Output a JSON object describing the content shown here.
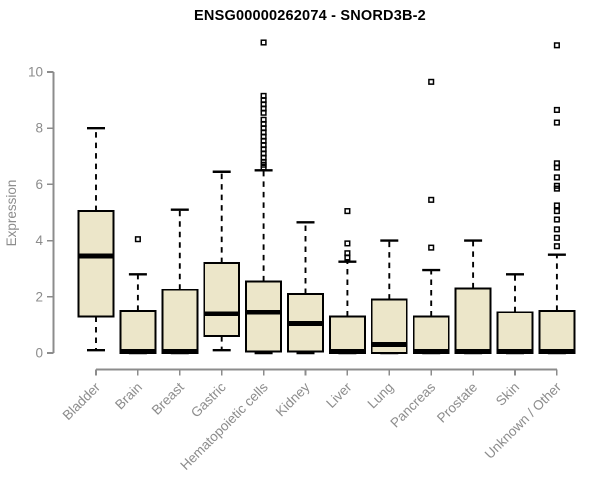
{
  "chart_data": {
    "type": "boxplot",
    "title": "ENSG00000262074 - SNORD3B-2",
    "ylabel": "Expression",
    "xlabel": "",
    "ylim": [
      0,
      11.3
    ],
    "yticks": [
      0,
      2,
      4,
      6,
      8,
      10
    ],
    "grid": false,
    "legend": "none",
    "colors": {
      "box_fill": "#ECE6C9",
      "box_stroke": "#000000",
      "median": "#000000",
      "whisker": "#000000",
      "outlier": "#000000",
      "axis_line": "#8C8C8C",
      "axis_text": "#8C8C8C",
      "title_text": "#000000"
    },
    "categories": [
      "Bladder",
      "Brain",
      "Breast",
      "Gastric",
      "Hematopoietic cells",
      "Kidney",
      "Liver",
      "Lung",
      "Pancreas",
      "Prostate",
      "Skin",
      "Unknown / Other"
    ],
    "series": [
      {
        "name": "Bladder",
        "low": 0.1,
        "q1": 1.3,
        "median": 3.45,
        "q3": 5.05,
        "high": 8.0,
        "outliers": []
      },
      {
        "name": "Brain",
        "low": 0,
        "q1": 0,
        "median": 0.05,
        "q3": 1.5,
        "high": 2.8,
        "outliers": [
          4.05
        ]
      },
      {
        "name": "Breast",
        "low": 0,
        "q1": 0,
        "median": 0.05,
        "q3": 2.25,
        "high": 5.1,
        "outliers": []
      },
      {
        "name": "Gastric",
        "low": 0.1,
        "q1": 0.6,
        "median": 1.4,
        "q3": 3.2,
        "high": 6.45,
        "outliers": []
      },
      {
        "name": "Hematopoietic cells",
        "low": 0,
        "q1": 0.05,
        "median": 1.45,
        "q3": 2.55,
        "high": 6.5,
        "outliers": [
          11.05,
          9.15,
          9.0,
          8.85,
          8.7,
          8.55,
          8.3,
          8.15,
          8.0,
          7.85,
          7.7,
          7.55,
          7.4,
          7.25,
          7.1,
          6.95,
          6.8,
          6.7,
          6.6
        ]
      },
      {
        "name": "Kidney",
        "low": 0,
        "q1": 0.05,
        "median": 1.05,
        "q3": 2.1,
        "high": 4.65,
        "outliers": []
      },
      {
        "name": "Liver",
        "low": 0,
        "q1": 0,
        "median": 0.05,
        "q3": 1.3,
        "high": 3.25,
        "outliers": [
          5.05,
          3.9,
          3.55,
          3.4
        ]
      },
      {
        "name": "Lung",
        "low": 0,
        "q1": 0,
        "median": 0.3,
        "q3": 1.9,
        "high": 4.0,
        "outliers": []
      },
      {
        "name": "Pancreas",
        "low": 0,
        "q1": 0,
        "median": 0.05,
        "q3": 1.3,
        "high": 2.95,
        "outliers": [
          9.65,
          5.45,
          3.75
        ]
      },
      {
        "name": "Prostate",
        "low": 0,
        "q1": 0,
        "median": 0.05,
        "q3": 2.3,
        "high": 4.0,
        "outliers": []
      },
      {
        "name": "Skin",
        "low": 0,
        "q1": 0,
        "median": 0.05,
        "q3": 1.45,
        "high": 2.8,
        "outliers": []
      },
      {
        "name": "Unknown / Other",
        "low": 0,
        "q1": 0,
        "median": 0.05,
        "q3": 1.5,
        "high": 3.5,
        "outliers": [
          10.95,
          8.65,
          8.2,
          6.75,
          6.6,
          6.25,
          5.95,
          5.85,
          5.25,
          5.05,
          4.75,
          4.4,
          4.1,
          3.8
        ]
      }
    ]
  }
}
